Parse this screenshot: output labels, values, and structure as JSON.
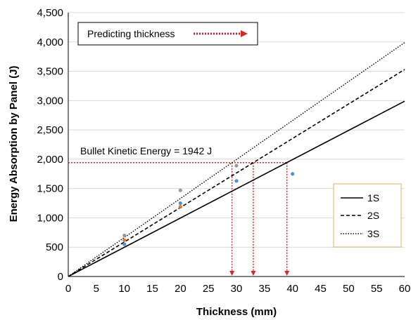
{
  "chart_data": {
    "type": "line",
    "xlabel": "Thickness (mm)",
    "ylabel": "Energy Absorption by Panel (J)",
    "xlim": [
      0,
      60
    ],
    "ylim": [
      0,
      4500
    ],
    "x_ticks": [
      "0",
      "5",
      "10",
      "15",
      "20",
      "25",
      "30",
      "35",
      "40",
      "45",
      "50",
      "55",
      "60"
    ],
    "y_ticks": [
      "0",
      "500",
      "1,000",
      "1,500",
      "2,000",
      "2,500",
      "3,000",
      "3,500",
      "4,000",
      "4,500"
    ],
    "grid": "horizontal",
    "legend_position": "right",
    "series": [
      {
        "name": "1S",
        "style": "solid",
        "color": "#000000",
        "x": [
          0,
          60
        ],
        "y": [
          0,
          2990
        ]
      },
      {
        "name": "2S",
        "style": "dashed",
        "color": "#000000",
        "x": [
          0,
          60
        ],
        "y": [
          0,
          3530
        ]
      },
      {
        "name": "3S",
        "style": "dotted",
        "color": "#000000",
        "x": [
          0,
          60
        ],
        "y": [
          0,
          3990
        ]
      }
    ],
    "data_points": [
      {
        "x": 10,
        "y": 550,
        "color": "#4f8fd6"
      },
      {
        "x": 10,
        "y": 620,
        "color": "#e07a2a"
      },
      {
        "x": 10,
        "y": 700,
        "color": "#9a9a9a"
      },
      {
        "x": 20,
        "y": 1190,
        "color": "#e07a2a"
      },
      {
        "x": 20,
        "y": 1250,
        "color": "#4f8fd6"
      },
      {
        "x": 20,
        "y": 1470,
        "color": "#9a9a9a"
      },
      {
        "x": 30,
        "y": 1630,
        "color": "#4f8fd6"
      },
      {
        "x": 30,
        "y": 1890,
        "color": "#9a9a9a"
      },
      {
        "x": 40,
        "y": 1750,
        "color": "#4f8fd6"
      }
    ],
    "reference_level": {
      "y": 1942,
      "label": "Bullet Kinetic Energy = 1942 J",
      "color": "#d62728"
    },
    "predicted_thickness_x": [
      29.2,
      33.0,
      39.0
    ],
    "annotation": {
      "label": "Predicting thickness",
      "color": "#d62728"
    }
  }
}
